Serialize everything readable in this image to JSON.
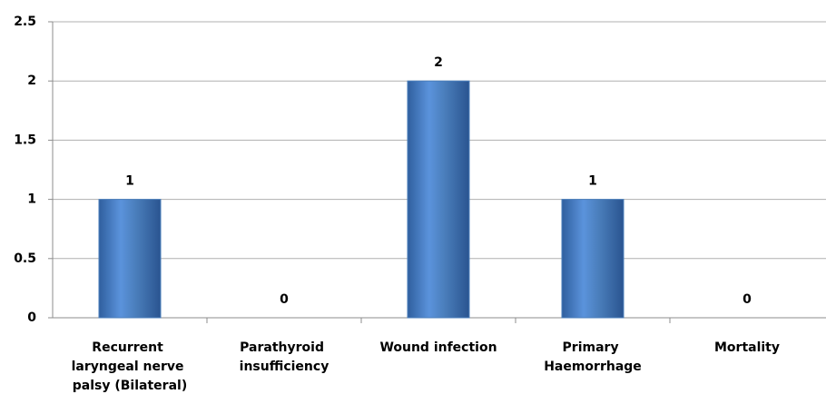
{
  "chart_data": {
    "type": "bar",
    "categories": [
      "Recurrent laryngeal nerve palsy (Bilateral)",
      "Parathyroid insufficiency",
      "Wound infection",
      "Primary Haemorrhage",
      "Mortality"
    ],
    "values": [
      1,
      0,
      2,
      1,
      0
    ],
    "color": "#4a7ebb",
    "ylim": [
      0,
      2.5
    ],
    "yticks": [
      0,
      0.5,
      1,
      1.5,
      2,
      2.5
    ],
    "grid": true
  }
}
